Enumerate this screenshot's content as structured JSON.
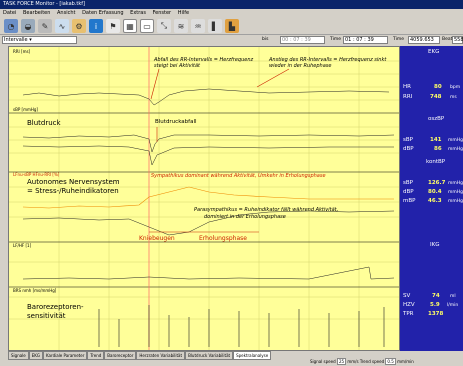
{
  "window": {
    "title": "TASK FORCE Monitor - [iakab.tkf]"
  },
  "menu": [
    "Datei",
    "Bearbeiten",
    "Ansicht",
    "Daten Erfassung",
    "Extras",
    "Fenster",
    "Hilfe"
  ],
  "timebar": {
    "interval_label": "Intervalle",
    "zeit_bis_label": "bis",
    "zeit_start": "00 : 07 : 39",
    "time_label": "Time",
    "time_value": "01 : 07 : 39",
    "time2_label": "Time",
    "time2_value": "4059.653",
    "beat_label": "Beat",
    "beat_value": "558"
  },
  "channels": {
    "rri": {
      "label": "RRI   [ms]",
      "ticks": [
        "1000",
        "900",
        "800",
        "700"
      ]
    },
    "sbp": {
      "label": "sBP   [mmHg]",
      "ticks": [
        "160",
        "140",
        "120",
        "100",
        "80"
      ]
    },
    "lfhf": {
      "label": "LFnu-sBP  HFnu-RRI  [%]",
      "ticks": [
        "100",
        "80",
        "60",
        "40",
        "20"
      ]
    },
    "lfhf2": {
      "label": "LF/HF   [1]",
      "ticks": [
        "10",
        "5",
        "0"
      ]
    },
    "brs": {
      "label": "BRS  nmh  [ms/mmHg]",
      "ticks": [
        "40",
        "30",
        "20",
        "10"
      ]
    }
  },
  "annotations": {
    "abfall": "Abfall des RR-Intervalls = Herzfrequenz steigt bei Aktivität",
    "anstieg": "Anstieg des RR-Intervalls = Herzfrequenz sinkt wieder in der Ruhephase",
    "blutdruck": "Blutdruck",
    "blutdruckabfall": "Blutdruckabfall",
    "ans_title": "Autonomes Nervensystem",
    "ans_sub": "= Stress-/Ruheindikatoren",
    "sympathikus": "Sympathikus dominant während Aktivität, Umkehr in Erholungsphase",
    "para1": "Parasympathikus = Ruheindikator fällt während Aktivität,",
    "para2": "dominiert in der Erholungsphase",
    "kniebeugen": "Kniebeugen",
    "erholung": "Erholungsphase",
    "baro1": "Barorezeptoren-",
    "baro2": "sensitivität"
  },
  "panel": {
    "ekg": "EKG",
    "hr_label": "HR",
    "hr_value": "80",
    "hr_unit": "bpm",
    "rri_label": "RRI",
    "rri_value": "748",
    "rri_unit": "ms",
    "ov_label": "oszBP",
    "sbp_label": "sBP",
    "sbp_value": "141",
    "sbp_unit": "mmHg",
    "dbp_label": "dBP",
    "dbp_value": "86",
    "dbp_unit": "mmHg",
    "cont_label": "kontBP",
    "sbp2_label": "sBP",
    "sbp2_value": "126.7",
    "sbp2_unit": "mmHg",
    "dbp2_label": "dBP",
    "dbp2_value": "80.4",
    "dbp2_unit": "mmHg",
    "mbp_label": "mBP",
    "mbp_value": "46.3",
    "mbp_unit": "mmHg",
    "ikg": "IKG",
    "sv_label": "SV",
    "sv_value": "74",
    "sv_unit": "ml",
    "hzv_label": "HZV",
    "hzv_value": "5.9",
    "hzv_unit": "l/min",
    "tpr_label": "TPR",
    "tpr_value": "1378",
    "tpr_unit": "dyn*s/cm5"
  },
  "tabs": [
    "Signale",
    "EKG",
    "Kardiale Parameter",
    "Trend",
    "Baroreceptor",
    "Herzraten Variabilität",
    "Blutdruck Variabilität",
    "Spektralanalyse"
  ],
  "status": {
    "scroll_label": "Signal speed",
    "scroll_value": "25",
    "scroll_unit": "mm/s",
    "trend_label": "Trend speed",
    "trend_value": "0.5",
    "trend_unit": "mm/min"
  }
}
